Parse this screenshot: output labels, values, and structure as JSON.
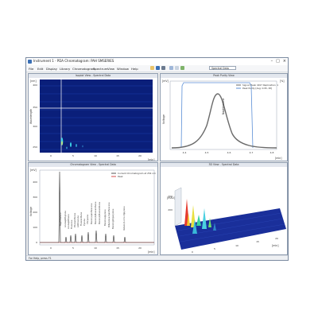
{
  "window": {
    "title": "Instrument 1 - PDA Chromatogram: PAH SMSERIES",
    "controls": [
      "–",
      "□",
      "×"
    ]
  },
  "menu": [
    "File",
    "Edit",
    "Display",
    "Library",
    "Chromatogram",
    "Spectrum",
    "View",
    "Window",
    "Help"
  ],
  "toolbar": {
    "select_value": "Spectral Data",
    "icons": [
      "open-icon",
      "save-icon",
      "print-icon",
      "zoom-icon",
      "cursor-icon",
      "refresh-icon"
    ]
  },
  "colors": {
    "accent": "#3a6fb5",
    "pane_header": "#e3e7ee",
    "contour_bg": "#0a1f7a",
    "chrom_line": "#2b2b2b",
    "peak_line": "#cc2222"
  },
  "contour": {
    "header": "Isoplot View - Spectral Data",
    "unit_y": "[nm]",
    "unit_x": "[min]",
    "y_label": "Wavelength",
    "y_ticks": [
      "400",
      "350",
      "300",
      "250"
    ],
    "x_ticks": [
      "0",
      "5",
      "10",
      "15",
      "20"
    ]
  },
  "purity": {
    "header": "Peak Purity View",
    "legend": [
      "Signal: Peak 4017 Replication: 1",
      "Peak Purity [Avg: 0.95, 95]"
    ],
    "peak_label": "Naphthalene",
    "y_label": "Voltage",
    "unit_y": "[mV]",
    "unit_y2": "[%]",
    "unit_x": "[min]",
    "x_ticks": [
      "4.4",
      "4.5",
      "4.6",
      "4.7",
      "4.8"
    ]
  },
  "chromatogram": {
    "header": "Chromatogram View - Spectral Data",
    "legend": [
      "Current Chromatogram at 254 nm",
      "Peak"
    ],
    "y_label": "Voltage",
    "unit_y": "[mV]",
    "unit_x": "[min]",
    "y_ticks": [
      "400",
      "300",
      "200",
      "100",
      "0"
    ],
    "x_ticks": [
      "0",
      "5",
      "10",
      "15",
      "20"
    ],
    "peak_labels": [
      "Naphthalene",
      "Acenaphthylene",
      "Acenaphthene",
      "Fluorene",
      "Phenanthrene",
      "Anthracene",
      "Fluoranthene",
      "Pyrene",
      "Chrysene",
      "Benzo(a)anthracene",
      "Benzo(b)fluoranthene",
      "Benzo(k)fluoranthene",
      "Benzo(a)pyrene",
      "Dibenzo(a,h)anthracene",
      "Benzo(ghi)perylene",
      "Indeno(1,2,3-cd)pyrene"
    ]
  },
  "view3d": {
    "header": "3D View - Spectral Data",
    "unit_z": "[mAU]",
    "z_ticks": [
      "400",
      "200"
    ],
    "unit_x": "[min]",
    "x_ticks": [
      "0",
      "5",
      "10",
      "15",
      "20"
    ]
  },
  "status": "For Help, press F1"
}
